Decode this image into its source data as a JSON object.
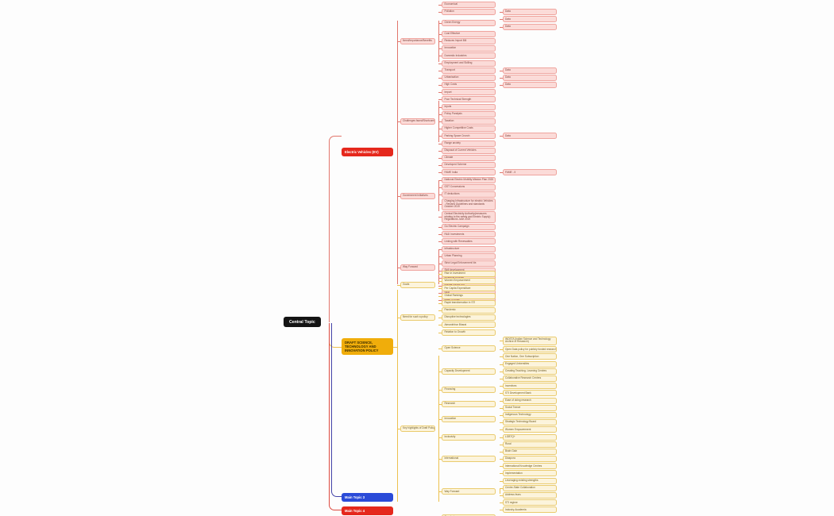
{
  "central": {
    "label": "Central Topic"
  },
  "branches": [
    {
      "label": "Electric Vehicles (EV)",
      "theme": "red",
      "children": [
        {
          "label": "Need/Importance/Benefits",
          "children": [
            {
              "label": "Economical"
            },
            {
              "label": "Pollution",
              "children": [
                {
                  "label": "Data"
                }
              ]
            },
            {
              "label": "Green Energy",
              "children": [
                {
                  "label": "Data"
                },
                {
                  "label": "Data"
                }
              ]
            },
            {
              "label": "Cost Effective"
            },
            {
              "label": "Reduces Import Bill"
            },
            {
              "label": "Innovation"
            },
            {
              "label": "Domestic Industries"
            },
            {
              "label": "Employment and Skilling"
            },
            {
              "label": "Transport",
              "children": [
                {
                  "label": "Data"
                }
              ]
            },
            {
              "label": "Urbanisation",
              "children": [
                {
                  "label": "Data"
                }
              ]
            }
          ]
        },
        {
          "label": "Challenges faced/Shortcomings",
          "children": [
            {
              "label": "High Costs",
              "children": [
                {
                  "label": "Data"
                }
              ]
            },
            {
              "label": "Import"
            },
            {
              "label": "Poor Technical Strength"
            },
            {
              "label": "Inputs"
            },
            {
              "label": "Policy Paralysis"
            },
            {
              "label": "Taxation"
            },
            {
              "label": "Higher Competitive Costs"
            },
            {
              "label": "Parking Space Crunch",
              "children": [
                {
                  "label": "Data"
                }
              ]
            },
            {
              "label": "Range anxiety"
            },
            {
              "label": "Disposal of Current Vehicles"
            },
            {
              "label": "Climate"
            }
          ]
        },
        {
          "label": "Government Initiatives",
          "children": [
            {
              "label": "Developed Scheme"
            },
            {
              "label": "FAME India",
              "children": [
                {
                  "label": "FAME - II"
                }
              ]
            },
            {
              "label": "National Electric Mobility Mission Plan 2020"
            },
            {
              "label": "GST Concessions"
            },
            {
              "label": "IT deductions"
            },
            {
              "label": "Charging Infrastructure for electric Vehicles - Revised Guidelines and standards October 2019"
            },
            {
              "label": "Central Electricity Authority(measures relating to the safety and Electric Supply) Regulations June 2019"
            },
            {
              "label": "Go Electric Campaign"
            }
          ]
        },
        {
          "label": "Way Forward",
          "children": [
            {
              "label": "R&D Investments"
            },
            {
              "label": "Linking with Renewables"
            },
            {
              "label": "Infrastructure"
            },
            {
              "label": "Urban Planning"
            },
            {
              "label": "Strict Legal Enforcement Ne."
            },
            {
              "label": "Skill development"
            },
            {
              "label": "Incentive Policies"
            },
            {
              "label": "Private Sector Aid"
            },
            {
              "label": "S&D"
            },
            {
              "label": "Make in India"
            }
          ]
        }
      ]
    },
    {
      "label": "DRAFT SCIENCE, TECHNOLOGY AND INNOVATION POLICY",
      "theme": "yellow",
      "children": [
        {
          "label": "Goals",
          "children": [
            {
              "label": "Rise in Investment"
            },
            {
              "label": "Women Empowerment"
            },
            {
              "label": "Per Capita Expenditure"
            },
            {
              "label": "Global Rankings"
            }
          ]
        },
        {
          "label": "Need for such a policy",
          "children": [
            {
              "label": "Rapid transformation in STI"
            },
            {
              "label": "Pandemic"
            },
            {
              "label": "Disruptive technologies"
            },
            {
              "label": "Atmanirbhar Bharat"
            },
            {
              "label": "Relation to Growth"
            }
          ]
        },
        {
          "label": "Key highlights of Draft Policy",
          "children": [
            {
              "label": "Open Science",
              "children": [
                {
                  "label": "INDSTA (Indian Science and Technology Archive of Research)"
                },
                {
                  "label": "Open Data policy for publicly funded research"
                },
                {
                  "label": "One Nation, One Subscription"
                }
              ]
            },
            {
              "label": "Capacity Development",
              "children": [
                {
                  "label": "Engaged Universities"
                },
                {
                  "label": "Creating Teaching- Learning Centres"
                },
                {
                  "label": "Collaborative Research Centres"
                }
              ]
            },
            {
              "label": "Financing",
              "children": [
                {
                  "label": "Incentives"
                },
                {
                  "label": "STI Development Bank"
                }
              ]
            },
            {
              "label": "Research",
              "children": [
                {
                  "label": "Ease of doing research"
                },
                {
                  "label": "Social Trance"
                }
              ]
            },
            {
              "label": "Innovation",
              "children": [
                {
                  "label": "Indigenous Technology"
                },
                {
                  "label": "Strategic Technology Board"
                }
              ]
            },
            {
              "label": "Inclusivity",
              "children": [
                {
                  "label": "Women Empowerment"
                },
                {
                  "label": "LGBTQ+"
                },
                {
                  "label": "Rural"
                }
              ]
            },
            {
              "label": "International",
              "children": [
                {
                  "label": "Brain Gain"
                },
                {
                  "label": "Diaspora"
                },
                {
                  "label": "International Knowledge Centres"
                }
              ]
            },
            {
              "label": "Way Forward",
              "children": [
                {
                  "label": "Implementation"
                },
                {
                  "label": "Leveraging existing strengths"
                },
                {
                  "label": "Centre-State Collaboration"
                },
                {
                  "label": "Address fears"
                },
                {
                  "label": "STI regime"
                },
                {
                  "label": "Industry-Academia"
                }
              ]
            },
            {
              "label": "Conclusion"
            }
          ]
        }
      ]
    },
    {
      "label": "Main Topic 3",
      "theme": "blue",
      "children": []
    },
    {
      "label": "Main Topic 4",
      "theme": "red2",
      "children": []
    }
  ],
  "colors": {
    "background": "#fdfdfd",
    "central_node": "#141414",
    "ev_node": "#e5281c",
    "ev_line": "#e2766c",
    "ev_child_fill": "#fbdbd8",
    "ev_child_border": "#efa49e",
    "ev_child_text": "#7c423b",
    "sti_node": "#f0ad0b",
    "sti_line": "#edc14f",
    "sti_child_fill": "#fcf4dc",
    "sti_child_border": "#eacb6e",
    "sti_child_text": "#6e5a20",
    "topic3_node": "#2b4bd8",
    "topic3_line": "#4343a8",
    "topic4_node": "#e5281c",
    "topic4_line": "#dd4a40"
  }
}
